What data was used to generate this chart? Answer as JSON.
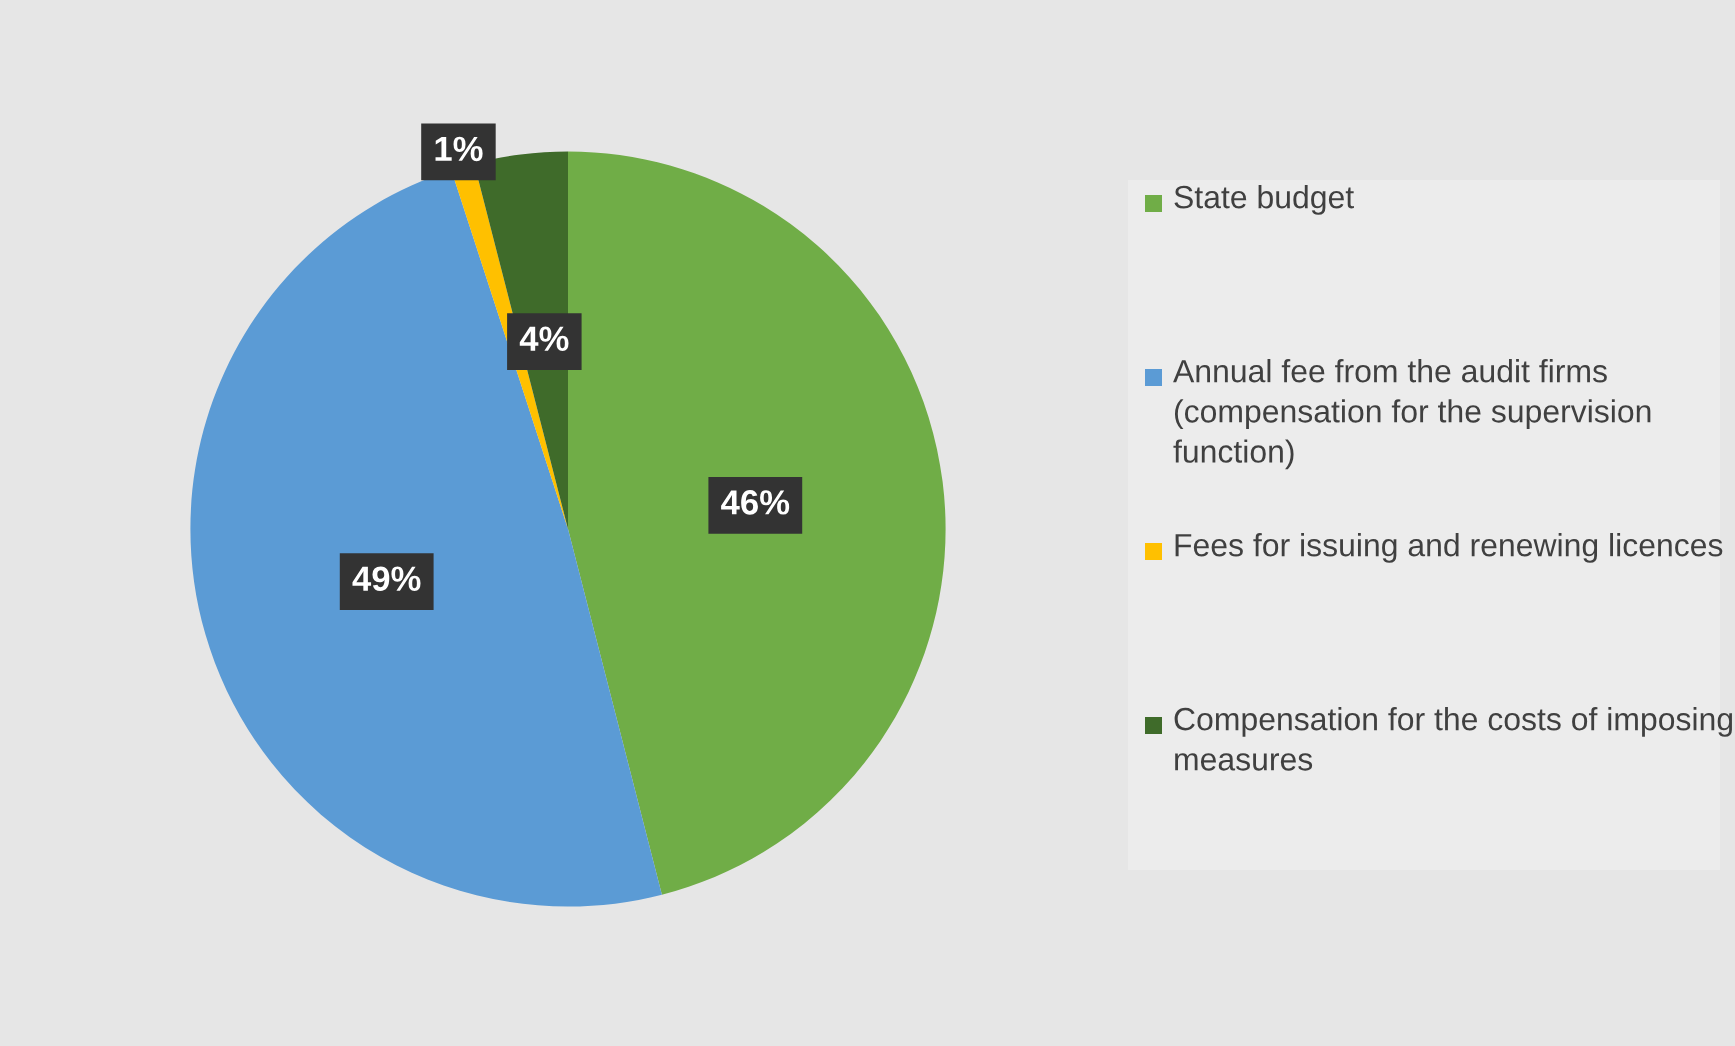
{
  "chart_data": {
    "type": "pie",
    "categories": [
      "State budget",
      "Annual fee from the audit firms (compensation for the supervision function)",
      "Fees for issuing and renewing licences",
      "Compensation for the costs of imposing measures"
    ],
    "values": [
      46,
      49,
      1,
      4
    ],
    "colors": [
      "#70ad47",
      "#5b9bd5",
      "#ffc000",
      "#3f6b2a"
    ],
    "value_labels": [
      "46%",
      "49%",
      "1%",
      "4%"
    ],
    "legend": "right"
  }
}
